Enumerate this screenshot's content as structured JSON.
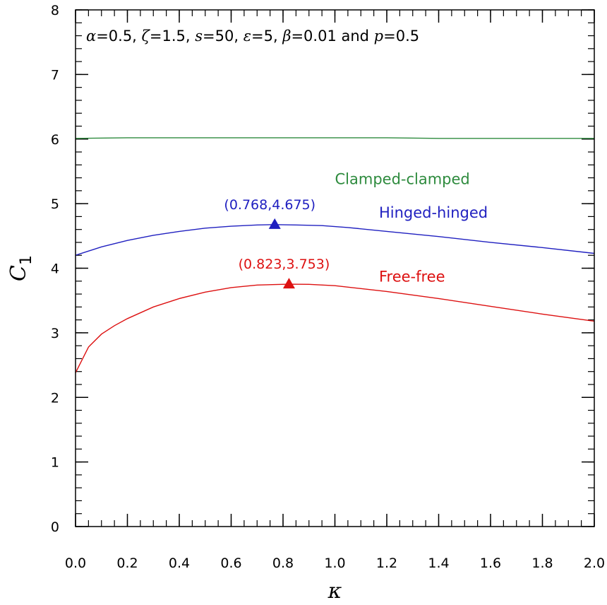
{
  "chart_data": {
    "type": "line",
    "annotation": "α=0.5, ζ=1.5, s=50, ε=5, β=0.01 and p=0.5",
    "xlabel": "κ",
    "ylabel": "C",
    "ylabel_sub": "1",
    "xlim": [
      0.0,
      2.0
    ],
    "ylim": [
      0,
      8
    ],
    "x_ticks": [
      "0.0",
      "0.2",
      "0.4",
      "0.6",
      "0.8",
      "1.0",
      "1.2",
      "1.4",
      "1.6",
      "1.8",
      "2.0"
    ],
    "y_ticks": [
      "0",
      "1",
      "2",
      "3",
      "4",
      "5",
      "6",
      "7",
      "8"
    ],
    "x_minor_step": 0.05,
    "y_minor_step": 0.2,
    "grid": false,
    "series": [
      {
        "name": "Clamped-clamped",
        "color": "#2e8b3e",
        "x": [
          0.0,
          0.2,
          0.4,
          0.6,
          0.8,
          1.0,
          1.2,
          1.4,
          1.6,
          1.8,
          2.0
        ],
        "y": [
          6.01,
          6.02,
          6.02,
          6.02,
          6.02,
          6.02,
          6.02,
          6.01,
          6.01,
          6.01,
          6.01
        ],
        "label_at": [
          1.0,
          5.3
        ]
      },
      {
        "name": "Hinged-hinged",
        "color": "#2020c0",
        "x": [
          0.0,
          0.1,
          0.2,
          0.3,
          0.4,
          0.5,
          0.6,
          0.7,
          0.768,
          0.85,
          0.95,
          1.05,
          1.2,
          1.4,
          1.6,
          1.8,
          2.0
        ],
        "y": [
          4.2,
          4.33,
          4.43,
          4.51,
          4.57,
          4.62,
          4.65,
          4.67,
          4.675,
          4.67,
          4.66,
          4.63,
          4.57,
          4.49,
          4.4,
          4.32,
          4.23
        ],
        "marker": {
          "x": 0.768,
          "y": 4.675,
          "label": "(0.768,4.675)"
        },
        "label_at": [
          1.17,
          4.78
        ]
      },
      {
        "name": "Free-free",
        "color": "#dd1111",
        "x": [
          0.0,
          0.05,
          0.1,
          0.15,
          0.2,
          0.3,
          0.4,
          0.5,
          0.6,
          0.7,
          0.823,
          0.9,
          1.0,
          1.2,
          1.4,
          1.6,
          1.8,
          2.0
        ],
        "y": [
          2.38,
          2.78,
          2.98,
          3.11,
          3.22,
          3.4,
          3.53,
          3.63,
          3.7,
          3.74,
          3.753,
          3.75,
          3.73,
          3.64,
          3.53,
          3.41,
          3.29,
          3.18
        ],
        "marker": {
          "x": 0.823,
          "y": 3.753,
          "label": "(0.823,3.753)"
        },
        "label_at": [
          1.17,
          3.79
        ]
      }
    ]
  }
}
